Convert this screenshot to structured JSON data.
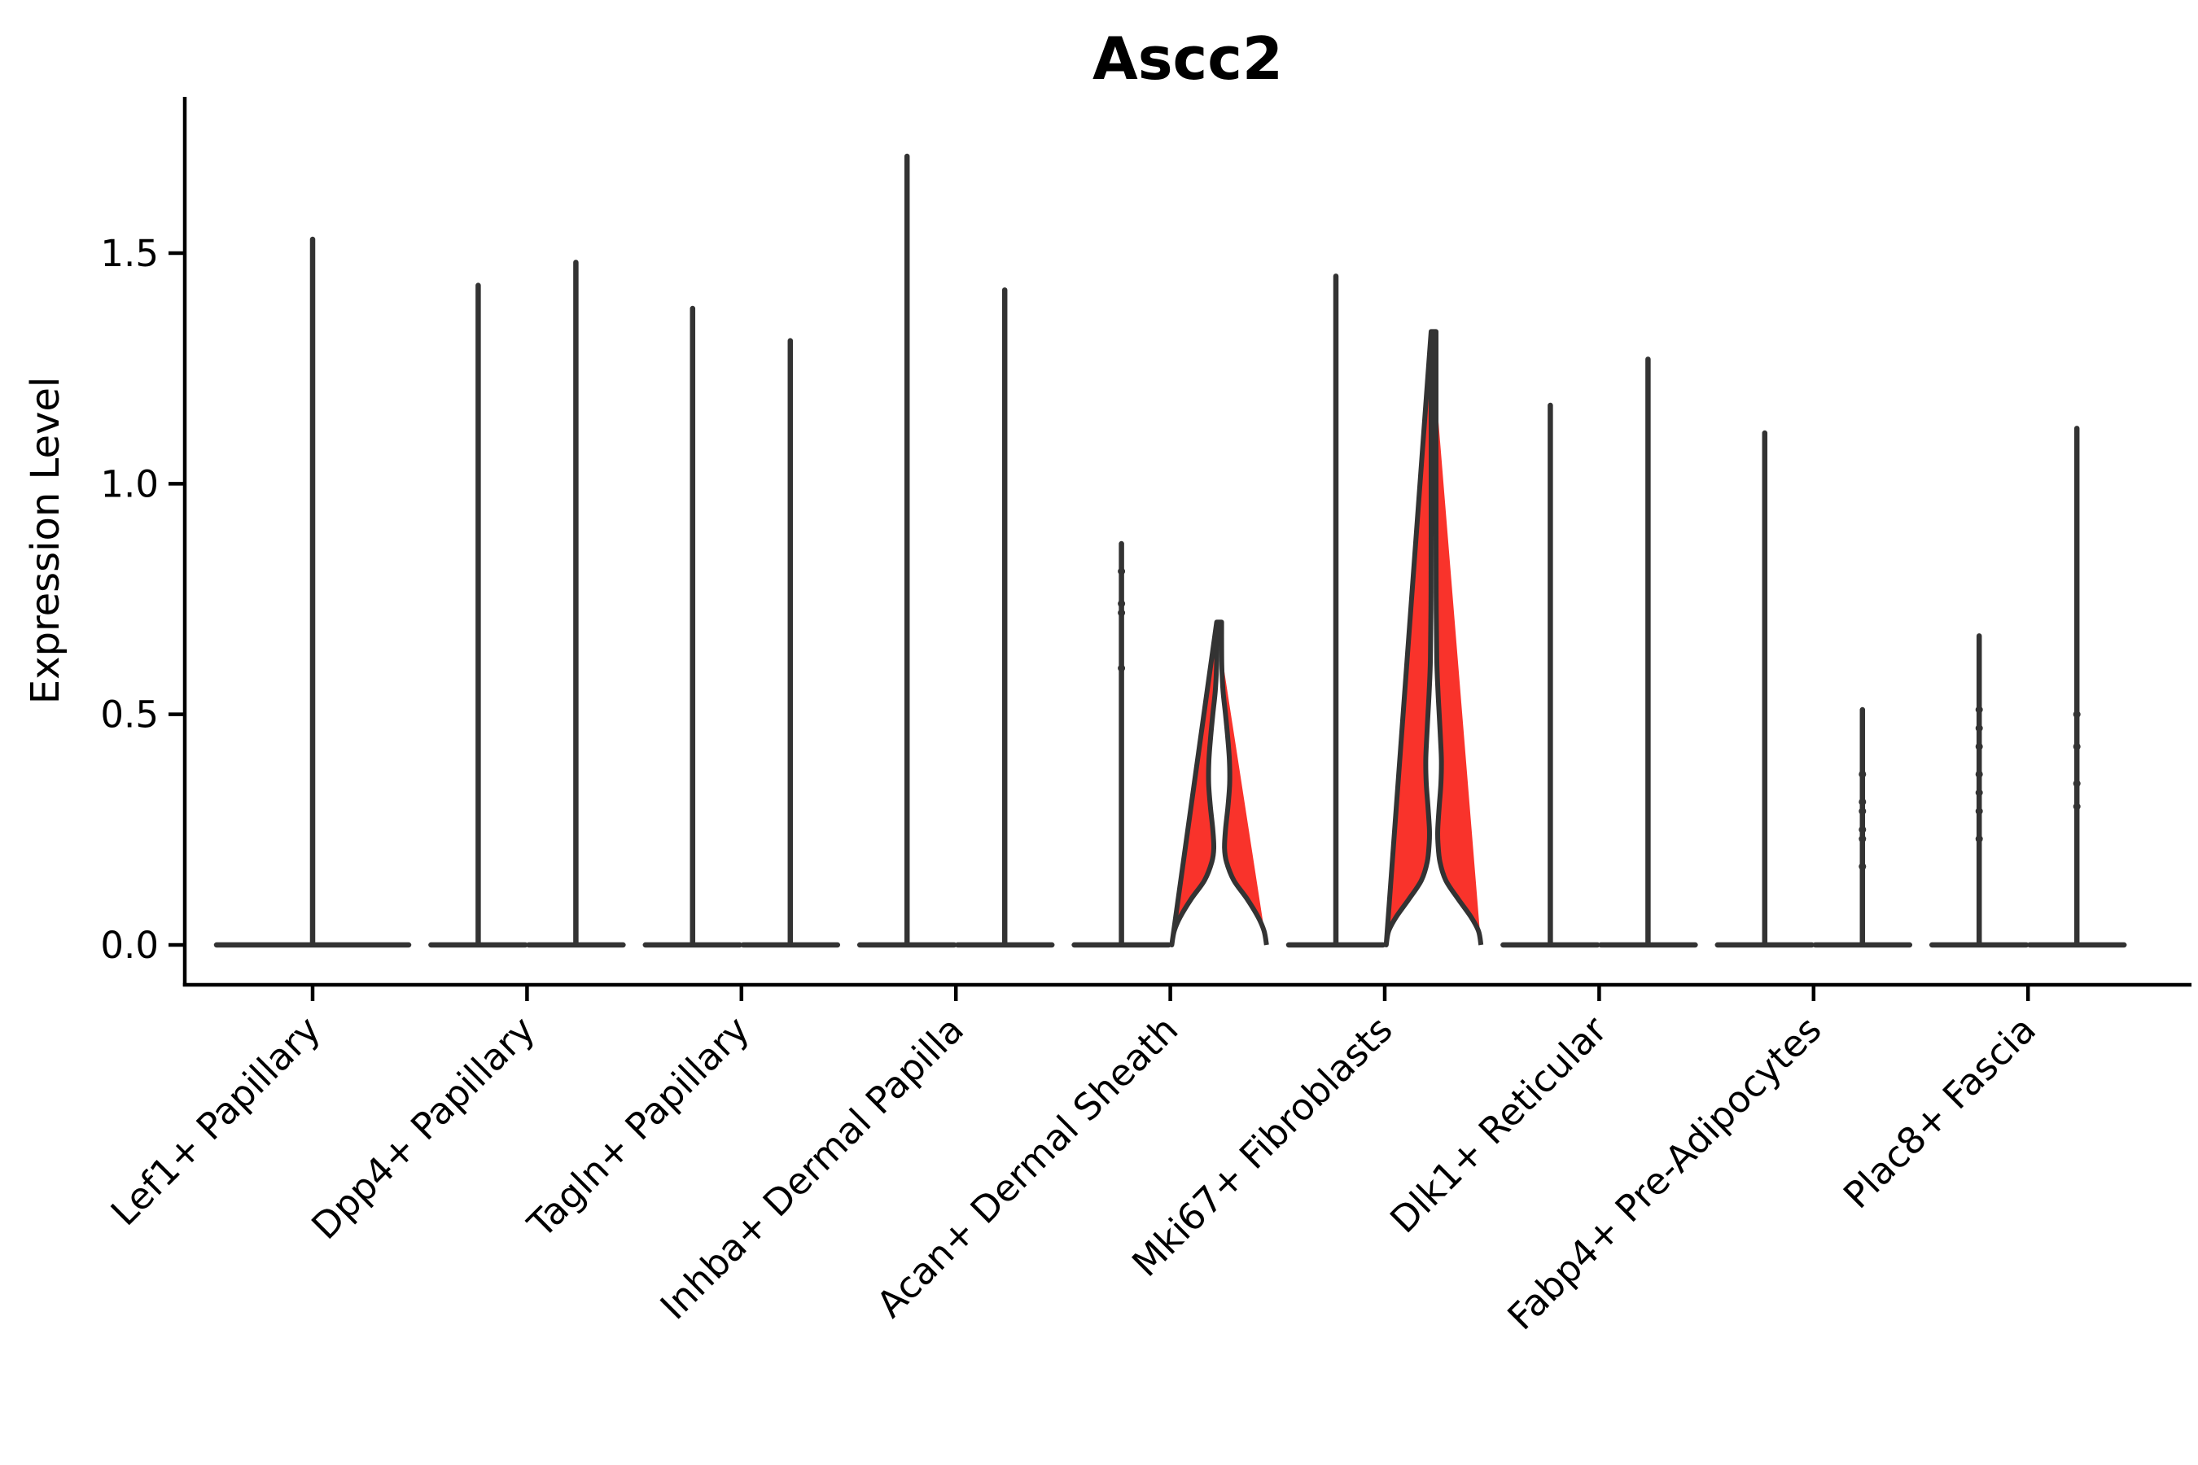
{
  "chart_data": {
    "type": "violin",
    "title": "Ascc2",
    "ylabel": "Expression Level",
    "xlabel": "",
    "yticks": [
      "0.0",
      "0.5",
      "1.0",
      "1.5"
    ],
    "ytick_values": [
      0.0,
      0.5,
      1.0,
      1.5
    ],
    "ylim": [
      -0.09,
      1.84
    ],
    "grid": "off",
    "legend": "none",
    "colors": {
      "violin_outline": "#333333",
      "highlight_fill": "#f9332b",
      "axis": "#000000",
      "text": "#000000"
    },
    "categories": [
      "Lef1+ Papillary",
      "Dpp4+ Papillary",
      "Tagln+ Papillary",
      "Inhba+ Dermal Papilla",
      "Acan+ Dermal Sheath",
      "Mki67+ Fibroblasts",
      "Dlk1+ Reticular",
      "Fabp4+ Pre-Adipocytes",
      "Plac8+ Fascia"
    ],
    "groups": [
      {
        "label": "Lef1+ Papillary",
        "violins": [
          {
            "position": "center",
            "style": "spike",
            "max": 1.53
          }
        ]
      },
      {
        "label": "Dpp4+ Papillary",
        "violins": [
          {
            "position": "left",
            "style": "spike",
            "max": 1.43
          },
          {
            "position": "right",
            "style": "spike",
            "max": 1.48
          }
        ]
      },
      {
        "label": "Tagln+ Papillary",
        "violins": [
          {
            "position": "left",
            "style": "spike",
            "max": 1.38
          },
          {
            "position": "right",
            "style": "spike",
            "max": 1.31
          }
        ]
      },
      {
        "label": "Inhba+ Dermal Papilla",
        "violins": [
          {
            "position": "left",
            "style": "spike",
            "max": 1.71
          },
          {
            "position": "right",
            "style": "spike",
            "max": 1.42
          }
        ]
      },
      {
        "label": "Acan+ Dermal Sheath",
        "violins": [
          {
            "position": "left",
            "style": "spike",
            "max": 0.87,
            "points": [
              0.81,
              0.74,
              0.72,
              0.6
            ]
          },
          {
            "position": "right",
            "style": "body",
            "fill": "highlight",
            "max": 0.7,
            "profile": [
              [
                0,
                0.97
              ],
              [
                0.03,
                0.92
              ],
              [
                0.06,
                0.8
              ],
              [
                0.1,
                0.57
              ],
              [
                0.14,
                0.3
              ],
              [
                0.18,
                0.15
              ],
              [
                0.21,
                0.11
              ],
              [
                0.25,
                0.13
              ],
              [
                0.3,
                0.18
              ],
              [
                0.35,
                0.215
              ],
              [
                0.4,
                0.21
              ],
              [
                0.45,
                0.175
              ],
              [
                0.5,
                0.13
              ],
              [
                0.55,
                0.08
              ],
              [
                0.6,
                0.055
              ],
              [
                0.65,
                0.05
              ],
              [
                0.7,
                0.05
              ]
            ]
          }
        ]
      },
      {
        "label": "Mki67+ Fibroblasts",
        "violins": [
          {
            "position": "left",
            "style": "spike",
            "max": 1.45
          },
          {
            "position": "right",
            "style": "body",
            "fill": "highlight",
            "max": 1.33,
            "profile": [
              [
                0,
                0.97
              ],
              [
                0.03,
                0.92
              ],
              [
                0.06,
                0.77
              ],
              [
                0.1,
                0.5
              ],
              [
                0.14,
                0.25
              ],
              [
                0.18,
                0.13
              ],
              [
                0.22,
                0.09
              ],
              [
                0.25,
                0.085
              ],
              [
                0.3,
                0.115
              ],
              [
                0.35,
                0.15
              ],
              [
                0.4,
                0.16
              ],
              [
                0.45,
                0.14
              ],
              [
                0.5,
                0.115
              ],
              [
                0.55,
                0.09
              ],
              [
                0.62,
                0.065
              ],
              [
                0.75,
                0.053
              ],
              [
                0.9,
                0.05
              ],
              [
                1.1,
                0.05
              ],
              [
                1.33,
                0.05
              ]
            ]
          }
        ]
      },
      {
        "label": "Dlk1+ Reticular",
        "violins": [
          {
            "position": "left",
            "style": "spike",
            "max": 1.17
          },
          {
            "position": "right",
            "style": "spike",
            "max": 1.27
          }
        ]
      },
      {
        "label": "Fabp4+ Pre-Adipocytes",
        "violins": [
          {
            "position": "left",
            "style": "spike",
            "max": 1.11
          },
          {
            "position": "right",
            "style": "spike",
            "max": 0.51,
            "points": [
              0.37,
              0.31,
              0.29,
              0.25,
              0.23,
              0.17
            ]
          }
        ]
      },
      {
        "label": "Plac8+ Fascia",
        "violins": [
          {
            "position": "left",
            "style": "spike",
            "max": 0.67,
            "points": [
              0.51,
              0.47,
              0.43,
              0.37,
              0.33,
              0.29,
              0.23
            ]
          },
          {
            "position": "right",
            "style": "spike",
            "max": 1.12,
            "points": [
              0.5,
              0.43,
              0.35,
              0.3
            ]
          }
        ]
      }
    ]
  }
}
